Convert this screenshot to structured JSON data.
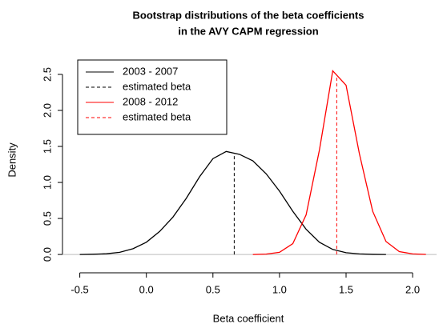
{
  "chart_data": {
    "type": "line",
    "title": [
      "Bootstrap distributions of the beta coefficients",
      "in the AVY CAPM regression"
    ],
    "x_label": "Beta coefficient",
    "y_label": "Density",
    "x": [
      -0.5,
      -0.4,
      -0.3,
      -0.2,
      -0.1,
      0.0,
      0.1,
      0.2,
      0.3,
      0.4,
      0.5,
      0.6,
      0.7,
      0.8,
      0.9,
      1.0,
      1.1,
      1.2,
      1.3,
      1.4,
      1.5,
      1.6,
      1.7,
      1.8,
      1.9,
      2.0,
      2.1
    ],
    "series": [
      {
        "name": "2003 - 2007",
        "color": "#000000",
        "estimate_label": "estimated beta",
        "estimate": 0.66,
        "values": [
          0,
          0.003,
          0.01,
          0.03,
          0.08,
          0.17,
          0.32,
          0.52,
          0.78,
          1.08,
          1.33,
          1.43,
          1.39,
          1.3,
          1.12,
          0.88,
          0.6,
          0.35,
          0.17,
          0.07,
          0.025,
          0.008,
          0.002,
          0,
          null,
          null,
          null
        ]
      },
      {
        "name": "2008 - 2012",
        "color": "#ff0000",
        "estimate_label": "estimated beta",
        "estimate": 1.43,
        "values": [
          null,
          null,
          null,
          null,
          null,
          null,
          null,
          null,
          null,
          null,
          null,
          null,
          null,
          0,
          0.005,
          0.03,
          0.15,
          0.55,
          1.45,
          2.55,
          2.35,
          1.4,
          0.6,
          0.18,
          0.04,
          0.008,
          0.001
        ]
      }
    ],
    "xlim": [
      -0.63,
      2.18
    ],
    "ylim": [
      -0.11,
      2.7
    ],
    "xticks": [
      {
        "value": -0.5,
        "label": "-0.5"
      },
      {
        "value": 0,
        "label": "0.0"
      },
      0.5,
      {
        "value": 1,
        "label": "1.0"
      },
      1.5,
      {
        "value": 2,
        "label": "2.0"
      }
    ],
    "yticks": [
      {
        "value": 0,
        "label": "0.0"
      },
      0.5,
      {
        "value": 1,
        "label": "1.0"
      },
      1.5,
      {
        "value": 2,
        "label": "2.0"
      },
      2.5
    ],
    "zero_line_color": "#bebebe",
    "legend": "topleft"
  }
}
